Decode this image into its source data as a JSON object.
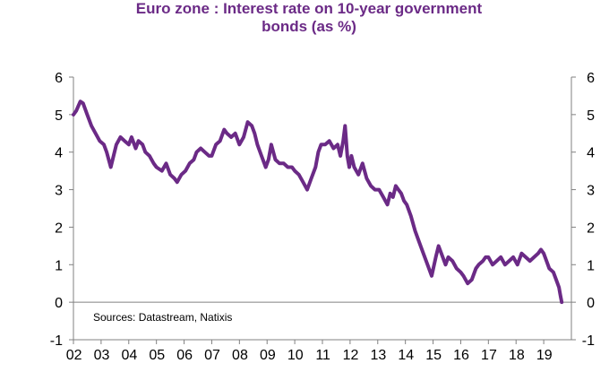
{
  "chart_data": {
    "type": "line",
    "title_lines": [
      "Euro zone : Interest rate on 10-year government",
      "bonds (as %)"
    ],
    "annotation": "Sources:  Datastream,  Natixis",
    "xlim": [
      2002,
      2020
    ],
    "ylim": [
      -1,
      6
    ],
    "y_ticks": [
      -1,
      0,
      1,
      2,
      3,
      4,
      5,
      6
    ],
    "x_tick_labels": [
      "02",
      "03",
      "04",
      "05",
      "06",
      "07",
      "08",
      "09",
      "10",
      "11",
      "12",
      "13",
      "14",
      "15",
      "16",
      "17",
      "18",
      "19"
    ],
    "grid": false,
    "line_color": "#6b2a86",
    "series": [
      {
        "x": [
          2002.0,
          2002.1,
          2002.25,
          2002.35,
          2002.5,
          2002.65,
          2002.8,
          2002.95,
          2003.1,
          2003.2,
          2003.35,
          2003.45,
          2003.55,
          2003.7,
          2003.85,
          2004.0,
          2004.1,
          2004.25,
          2004.35,
          2004.5,
          2004.6,
          2004.75,
          2004.9,
          2005.0,
          2005.2,
          2005.35,
          2005.5,
          2005.65,
          2005.75,
          2005.9,
          2006.05,
          2006.2,
          2006.35,
          2006.45,
          2006.6,
          2006.75,
          2006.9,
          2007.0,
          2007.15,
          2007.3,
          2007.45,
          2007.55,
          2007.7,
          2007.85,
          2008.0,
          2008.15,
          2008.3,
          2008.45,
          2008.55,
          2008.65,
          2008.8,
          2008.95,
          2009.05,
          2009.15,
          2009.3,
          2009.45,
          2009.6,
          2009.75,
          2009.9,
          2010.0,
          2010.15,
          2010.3,
          2010.45,
          2010.6,
          2010.75,
          2010.85,
          2010.95,
          2011.1,
          2011.25,
          2011.4,
          2011.55,
          2011.65,
          2011.75,
          2011.82,
          2011.9,
          2011.97,
          2012.05,
          2012.15,
          2012.3,
          2012.45,
          2012.6,
          2012.75,
          2012.9,
          2013.05,
          2013.2,
          2013.35,
          2013.45,
          2013.55,
          2013.65,
          2013.75,
          2013.85,
          2013.95,
          2014.05,
          2014.2,
          2014.35,
          2014.5,
          2014.65,
          2014.8,
          2014.95,
          2015.1,
          2015.2,
          2015.3,
          2015.45,
          2015.55,
          2015.7,
          2015.85,
          2016.0,
          2016.1,
          2016.25,
          2016.4,
          2016.55,
          2016.65,
          2016.8,
          2016.9,
          2017.0,
          2017.15,
          2017.3,
          2017.45,
          2017.6,
          2017.75,
          2017.9,
          2018.05,
          2018.2,
          2018.35,
          2018.5,
          2018.65,
          2018.8,
          2018.9,
          2019.0,
          2019.1,
          2019.2,
          2019.35,
          2019.45,
          2019.55,
          2019.6,
          2019.65
        ],
        "y": [
          5.0,
          5.1,
          5.35,
          5.3,
          5.0,
          4.7,
          4.5,
          4.3,
          4.2,
          4.0,
          3.6,
          3.9,
          4.2,
          4.4,
          4.3,
          4.2,
          4.4,
          4.1,
          4.3,
          4.2,
          4.0,
          3.9,
          3.7,
          3.6,
          3.5,
          3.7,
          3.4,
          3.3,
          3.2,
          3.4,
          3.5,
          3.7,
          3.8,
          4.0,
          4.1,
          4.0,
          3.9,
          3.9,
          4.2,
          4.3,
          4.6,
          4.5,
          4.4,
          4.5,
          4.2,
          4.4,
          4.8,
          4.7,
          4.5,
          4.2,
          3.9,
          3.6,
          3.8,
          4.2,
          3.8,
          3.7,
          3.7,
          3.6,
          3.6,
          3.5,
          3.4,
          3.2,
          3.0,
          3.3,
          3.6,
          4.0,
          4.2,
          4.2,
          4.3,
          4.1,
          4.2,
          3.9,
          4.3,
          4.7,
          3.9,
          3.6,
          3.9,
          3.6,
          3.4,
          3.7,
          3.3,
          3.1,
          3.0,
          3.0,
          2.8,
          2.6,
          2.9,
          2.8,
          3.1,
          3.0,
          2.9,
          2.7,
          2.6,
          2.3,
          1.9,
          1.6,
          1.3,
          1.0,
          0.7,
          1.2,
          1.5,
          1.3,
          1.0,
          1.2,
          1.1,
          0.9,
          0.8,
          0.7,
          0.5,
          0.6,
          0.9,
          1.0,
          1.1,
          1.2,
          1.2,
          1.0,
          1.1,
          1.2,
          1.0,
          1.1,
          1.2,
          1.0,
          1.3,
          1.2,
          1.1,
          1.2,
          1.3,
          1.4,
          1.3,
          1.1,
          0.9,
          0.8,
          0.6,
          0.4,
          0.2,
          0.0
        ]
      }
    ]
  }
}
